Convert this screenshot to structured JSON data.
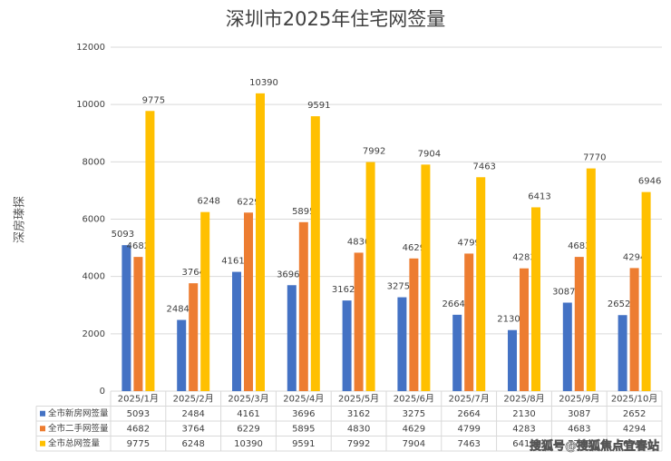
{
  "chart_data": {
    "type": "bar",
    "title": "深圳市2025年住宅网签量",
    "y_label": "深房瑧探",
    "categories": [
      "2025/1月",
      "2025/2月",
      "2025/3月",
      "2025/4月",
      "2025/5月",
      "2025/6月",
      "2025/7月",
      "2025/8月",
      "2025/9月",
      "2025/10月"
    ],
    "series": [
      {
        "name": "全市新房网签量",
        "color": "#4472c4",
        "values": [
          5093,
          2484,
          4161,
          3696,
          3162,
          3275,
          2664,
          2130,
          3087,
          2652
        ]
      },
      {
        "name": "全市二手网签量",
        "color": "#ed7d31",
        "values": [
          4682,
          3764,
          6229,
          5895,
          4830,
          4629,
          4799,
          4283,
          4683,
          4294
        ]
      },
      {
        "name": "全市总网签量",
        "color": "#ffc000",
        "values": [
          9775,
          6248,
          10390,
          9591,
          7992,
          7904,
          7463,
          6413,
          7770,
          6946
        ]
      }
    ],
    "ylim": [
      0,
      12000
    ],
    "yticks": [
      0,
      2000,
      4000,
      6000,
      8000,
      10000,
      12000
    ],
    "grid": true,
    "watermark": "搜狐号@搜狐焦点宜春站"
  }
}
